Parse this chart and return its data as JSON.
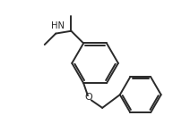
{
  "background_color": "#ffffff",
  "line_color": "#2a2a2a",
  "line_width": 1.4,
  "figsize": [
    1.93,
    1.48
  ],
  "dpi": 100,
  "xlim": [
    0,
    10
  ],
  "ylim": [
    0,
    7.67
  ]
}
